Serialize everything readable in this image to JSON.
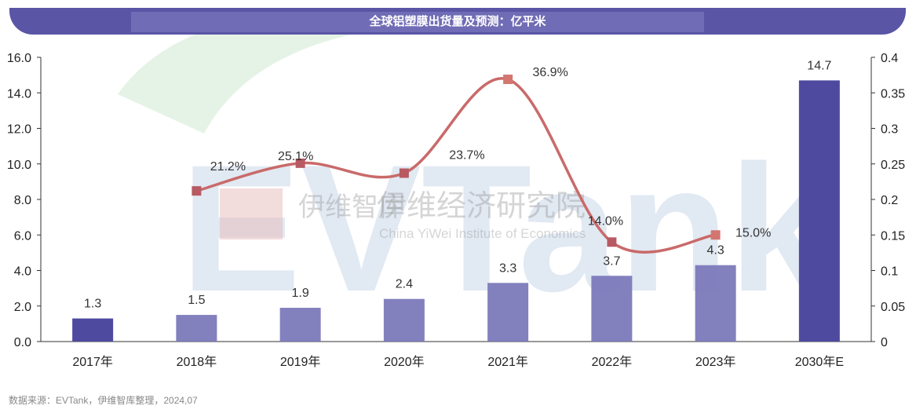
{
  "title": "全球铝塑膜出货量及预测：亿平米",
  "source": "数据来源：EVTank，伊维智库整理，2024,07",
  "watermark": {
    "logo": "EVTank",
    "cn": "伊维经济研究院",
    "short": "伊维智库",
    "en": "China YiWei Institute of Economics"
  },
  "colors": {
    "bar_dark": "#4e4aa0",
    "bar_light": "#7c79bb",
    "line": "#c96a6a",
    "marker": "#b85a62"
  },
  "chart_data": {
    "type": "bar+line",
    "categories": [
      "2017年",
      "2018年",
      "2019年",
      "2020年",
      "2021年",
      "2022年",
      "2023年",
      "2030年E"
    ],
    "series": [
      {
        "type": "bar",
        "axis": "left",
        "values": [
          1.3,
          1.5,
          1.9,
          2.4,
          3.3,
          3.7,
          4.3,
          14.7
        ],
        "labels": [
          "1.3",
          "1.5",
          "1.9",
          "2.4",
          "3.3",
          "3.7",
          "4.3",
          "14.7"
        ]
      },
      {
        "type": "line",
        "axis": "right",
        "smooth": true,
        "values": [
          null,
          0.212,
          0.251,
          0.237,
          0.369,
          0.14,
          0.15,
          null
        ],
        "labels": [
          "",
          "21.2%",
          "25.1%",
          "23.7%",
          "36.9%",
          "14.0%",
          "15.0%",
          ""
        ]
      }
    ],
    "yleft": {
      "min": 0,
      "max": 16,
      "ticks": [
        "0.0",
        "2.0",
        "4.0",
        "6.0",
        "8.0",
        "10.0",
        "12.0",
        "14.0",
        "16.0"
      ]
    },
    "yright": {
      "min": 0,
      "max": 0.4,
      "ticks": [
        "0",
        "0.05",
        "0.1",
        "0.15",
        "0.2",
        "0.25",
        "0.3",
        "0.35",
        "0.4"
      ]
    },
    "grid": false,
    "legend": "none"
  }
}
